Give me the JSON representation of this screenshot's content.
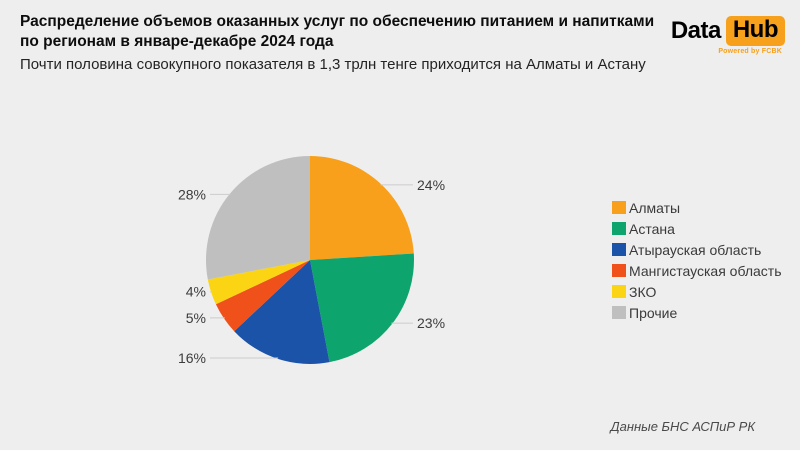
{
  "header": {
    "title": "Распределение объемов оказанных услуг по обеспечению питанием и напитками\nпо регионам в январе-декабре 2024 года",
    "subtitle": "Почти половина совокупного показателя в 1,3 трлн тенге приходится на Алматы и Астану"
  },
  "logo": {
    "brand_left": "Data",
    "brand_right": "Hub",
    "tagline": "Powered by FCBK",
    "accent_color": "#F7A01B"
  },
  "footer": {
    "source": "Данные БНС АСПиР РК"
  },
  "chart_data": {
    "type": "pie",
    "title": "Распределение объемов оказанных услуг по обеспечению питанием и напитками по регионам в январе-декабре 2024 года",
    "start_angle_deg": 0,
    "direction": "clockwise",
    "value_suffix": "%",
    "legend_position": "right",
    "label_color": "#3C3C3C",
    "leader_line_color": "#CCCCCC",
    "slices": [
      {
        "label": "Алматы",
        "value": 24,
        "color": "#F8A01C"
      },
      {
        "label": "Астана",
        "value": 23,
        "color": "#0EA46E"
      },
      {
        "label": "Атырауская область",
        "value": 16,
        "color": "#1A53A7"
      },
      {
        "label": "Мангистауская область",
        "value": 5,
        "color": "#F0501A"
      },
      {
        "label": "ЗКО",
        "value": 4,
        "color": "#FBD514"
      },
      {
        "label": "Прочие",
        "value": 28,
        "color": "#BFBFBF"
      }
    ]
  }
}
